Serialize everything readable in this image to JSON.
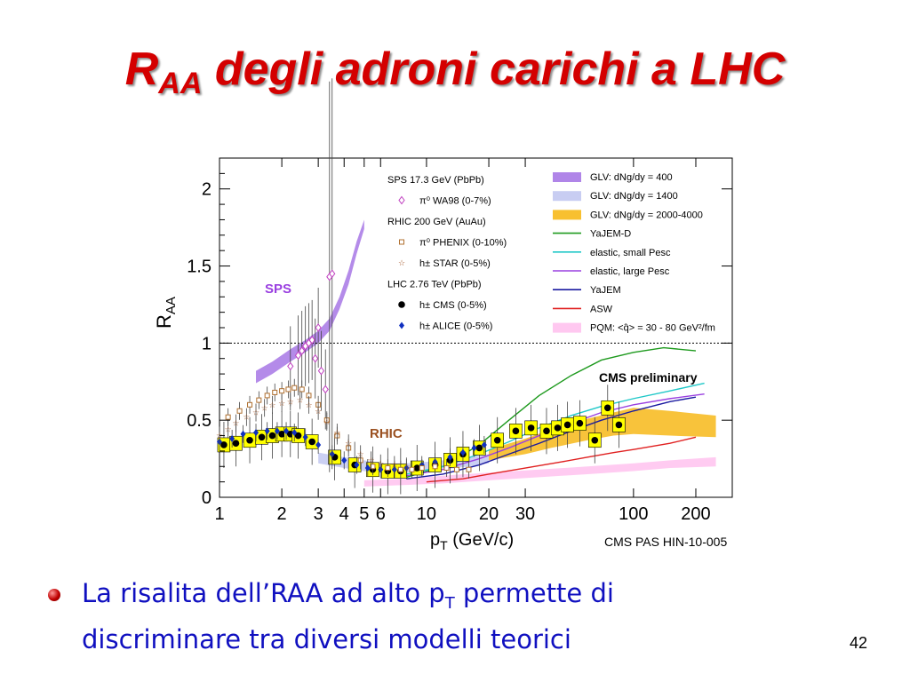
{
  "slide": {
    "title_main": "R",
    "title_sub": "AA",
    "title_rest": " degli adroni carichi a LHC",
    "bullet_part1": "La risalita dell’RAA ad alto p",
    "bullet_sub": "T",
    "bullet_part2": " permette di discriminare tra diversi modelli teorici",
    "page_number": "42"
  },
  "chart_data": {
    "type": "scatter",
    "xlabel": "p",
    "xlabel_sub": "T",
    "xlabel_unit": " (GeV/c)",
    "ylabel": "R",
    "ylabel_sub": "AA",
    "xscale": "log",
    "xlim": [
      1,
      300
    ],
    "ylim": [
      0,
      2.2
    ],
    "x_ticks": [
      1,
      2,
      3,
      4,
      5,
      6,
      10,
      20,
      30,
      100,
      200
    ],
    "x_tick_labels": [
      "1",
      "2",
      "3",
      "4",
      "5",
      "6",
      "10",
      "20",
      "30",
      "100",
      "200"
    ],
    "y_ticks": [
      0,
      0.5,
      1,
      1.5,
      2
    ],
    "y_tick_labels": [
      "0",
      "0.5",
      "1",
      "1.5",
      "2"
    ],
    "reference_line": 1,
    "annotations": {
      "sps": "SPS",
      "rhic": "RHIC",
      "cms_preliminary": "CMS preliminary",
      "source": "CMS PAS HIN-10-005"
    },
    "legend_left": [
      {
        "text": "SPS 17.3 GeV (PbPb)",
        "marker": "none"
      },
      {
        "text": "π⁰  WA98 (0-7%)",
        "marker": "open-diamond",
        "color": "#c040c0"
      },
      {
        "text": "RHIC 200 GeV (AuAu)",
        "marker": "none"
      },
      {
        "text": "π⁰  PHENIX (0-10%)",
        "marker": "open-square",
        "color": "#b07030"
      },
      {
        "text": "h±  STAR (0-5%)",
        "marker": "open-star",
        "color": "#a05020"
      },
      {
        "text": "LHC 2.76 TeV (PbPb)",
        "marker": "none"
      },
      {
        "text": "h±  CMS (0-5%)",
        "marker": "filled-circle",
        "color": "#000000"
      },
      {
        "text": "h±  ALICE (0-5%)",
        "marker": "filled-diamond",
        "color": "#1030c0"
      }
    ],
    "legend_right": [
      {
        "text": "GLV: dNg/dy = 400",
        "style": "band",
        "color": "#b085e8"
      },
      {
        "text": "GLV: dNg/dy = 1400",
        "style": "band",
        "color": "#c8cdf2"
      },
      {
        "text": "GLV: dNg/dy = 2000-4000",
        "style": "band",
        "color": "#f8c030"
      },
      {
        "text": "YaJEM-D",
        "style": "line",
        "color": "#1e9a1e"
      },
      {
        "text": "elastic, small Pesc",
        "style": "line",
        "color": "#20c8c8"
      },
      {
        "text": "elastic, large Pesc",
        "style": "line",
        "color": "#9a40e0"
      },
      {
        "text": "YaJEM",
        "style": "line",
        "color": "#1a1aa0"
      },
      {
        "text": "ASW",
        "style": "line",
        "color": "#e02020"
      },
      {
        "text": "PQM: <q̂> = 30 - 80 GeV²/fm",
        "style": "band",
        "color": "#ffc8f0"
      }
    ],
    "series": [
      {
        "name": "h±  CMS (0-5%)",
        "x": [
          1.05,
          1.2,
          1.4,
          1.6,
          1.8,
          2.0,
          2.2,
          2.4,
          2.8,
          3.6,
          4.5,
          5.5,
          6.5,
          7.5,
          9,
          11,
          13,
          15,
          18,
          22,
          27,
          32,
          38,
          43,
          48,
          55,
          65,
          75,
          85
        ],
        "y": [
          0.34,
          0.35,
          0.37,
          0.39,
          0.4,
          0.41,
          0.41,
          0.4,
          0.36,
          0.26,
          0.21,
          0.18,
          0.17,
          0.17,
          0.19,
          0.21,
          0.24,
          0.28,
          0.32,
          0.37,
          0.43,
          0.45,
          0.43,
          0.45,
          0.47,
          0.48,
          0.37,
          0.58,
          0.47
        ]
      },
      {
        "name": "h±  ALICE (0-5%)",
        "x": [
          1.0,
          1.15,
          1.3,
          1.5,
          1.7,
          1.9,
          2.1,
          2.3,
          2.6,
          3.0,
          3.5,
          4.0,
          4.6,
          5.2,
          6.0,
          7.0,
          8.0,
          9.5,
          11,
          13,
          15,
          17,
          19
        ],
        "y": [
          0.36,
          0.38,
          0.41,
          0.42,
          0.43,
          0.43,
          0.43,
          0.42,
          0.39,
          0.34,
          0.28,
          0.24,
          0.21,
          0.19,
          0.18,
          0.18,
          0.19,
          0.21,
          0.23,
          0.26,
          0.29,
          0.32,
          0.34
        ]
      },
      {
        "name": "π⁰  WA98 (0-7%)",
        "x": [
          2.2,
          2.4,
          2.5,
          2.6,
          2.7,
          2.8,
          2.9,
          3.0,
          3.1,
          3.25,
          3.4,
          3.5
        ],
        "y": [
          0.85,
          0.92,
          0.95,
          0.98,
          1.0,
          1.02,
          0.9,
          1.1,
          0.82,
          0.7,
          1.43,
          1.45
        ]
      },
      {
        "name": "π⁰  PHENIX (0-10%)",
        "x": [
          1.1,
          1.25,
          1.4,
          1.55,
          1.7,
          1.85,
          2.0,
          2.15,
          2.3,
          2.5,
          2.7,
          3.0,
          3.3,
          3.7,
          4.2,
          4.8,
          5.5,
          6.5,
          7.5,
          8.5,
          9.5,
          11,
          12.5,
          14,
          16
        ],
        "y": [
          0.52,
          0.56,
          0.6,
          0.63,
          0.66,
          0.68,
          0.69,
          0.7,
          0.71,
          0.7,
          0.66,
          0.6,
          0.5,
          0.4,
          0.32,
          0.24,
          0.2,
          0.19,
          0.18,
          0.18,
          0.19,
          0.2,
          0.19,
          0.18,
          0.18
        ]
      },
      {
        "name": "h±  STAR (0-5%)",
        "x": [
          1.0,
          1.1,
          1.2,
          1.35,
          1.5,
          1.65,
          1.8,
          2.0,
          2.2,
          2.45,
          2.7,
          3.0,
          3.3,
          3.7,
          4.2,
          4.8,
          5.4,
          6.0,
          7.0,
          8.0
        ],
        "y": [
          0.4,
          0.44,
          0.48,
          0.52,
          0.55,
          0.58,
          0.6,
          0.61,
          0.62,
          0.63,
          0.6,
          0.56,
          0.49,
          0.42,
          0.35,
          0.28,
          0.24,
          0.22,
          0.21,
          0.2
        ]
      }
    ],
    "models": [
      {
        "name": "GLV: dNg/dy = 400",
        "type": "band",
        "x": [
          1.5,
          1.8,
          2.2,
          2.6,
          3.0,
          3.4,
          3.8,
          4.2,
          4.6,
          5.0
        ],
        "y_low": [
          0.74,
          0.8,
          0.88,
          0.94,
          1.0,
          1.08,
          1.22,
          1.38,
          1.58,
          1.74
        ],
        "y_high": [
          0.82,
          0.88,
          0.96,
          1.02,
          1.08,
          1.16,
          1.3,
          1.47,
          1.66,
          1.8
        ]
      },
      {
        "name": "GLV: dNg/dy = 1400",
        "type": "band",
        "x": [
          3.0,
          4.0,
          5.0,
          6.0,
          8.0,
          10.0,
          12.0,
          14.0,
          16.0,
          20.0
        ],
        "y_low": [
          0.22,
          0.19,
          0.17,
          0.16,
          0.16,
          0.17,
          0.18,
          0.19,
          0.2,
          0.22
        ],
        "y_high": [
          0.29,
          0.26,
          0.24,
          0.22,
          0.22,
          0.23,
          0.24,
          0.25,
          0.26,
          0.28
        ]
      },
      {
        "name": "GLV: dNg/dy = 2000-4000",
        "type": "band",
        "x": [
          20,
          30,
          40,
          60,
          80,
          100,
          150,
          250
        ],
        "y_low": [
          0.24,
          0.28,
          0.32,
          0.37,
          0.4,
          0.41,
          0.4,
          0.39
        ],
        "y_high": [
          0.31,
          0.38,
          0.44,
          0.51,
          0.55,
          0.58,
          0.56,
          0.53
        ]
      },
      {
        "name": "YaJEM-D",
        "type": "line",
        "x": [
          8,
          12,
          18,
          25,
          35,
          50,
          70,
          100,
          140,
          200
        ],
        "y": [
          0.13,
          0.2,
          0.34,
          0.5,
          0.66,
          0.79,
          0.89,
          0.94,
          0.97,
          0.95
        ]
      },
      {
        "name": "elastic, small Pesc",
        "type": "line",
        "x": [
          8,
          12,
          18,
          25,
          35,
          50,
          70,
          100,
          150,
          220
        ],
        "y": [
          0.15,
          0.2,
          0.28,
          0.36,
          0.45,
          0.53,
          0.59,
          0.64,
          0.69,
          0.74
        ]
      },
      {
        "name": "elastic, large Pesc",
        "type": "line",
        "x": [
          8,
          12,
          18,
          25,
          35,
          50,
          70,
          100,
          150,
          220
        ],
        "y": [
          0.14,
          0.18,
          0.25,
          0.32,
          0.4,
          0.48,
          0.55,
          0.6,
          0.64,
          0.67
        ]
      },
      {
        "name": "YaJEM",
        "type": "line",
        "x": [
          8,
          12,
          18,
          25,
          35,
          50,
          70,
          100,
          150,
          200
        ],
        "y": [
          0.12,
          0.15,
          0.21,
          0.28,
          0.35,
          0.43,
          0.5,
          0.56,
          0.62,
          0.65
        ]
      },
      {
        "name": "ASW",
        "type": "line",
        "x": [
          10,
          15,
          20,
          30,
          45,
          60,
          80,
          100,
          150,
          200
        ],
        "y": [
          0.1,
          0.12,
          0.15,
          0.19,
          0.23,
          0.26,
          0.29,
          0.31,
          0.35,
          0.39
        ]
      },
      {
        "name": "PQM: <q̂> = 30 - 80 GeV²/fm",
        "type": "band",
        "x": [
          5,
          8,
          12,
          20,
          35,
          60,
          100,
          150,
          250
        ],
        "y_low": [
          0.07,
          0.08,
          0.09,
          0.11,
          0.13,
          0.15,
          0.17,
          0.19,
          0.2
        ],
        "y_high": [
          0.11,
          0.12,
          0.14,
          0.16,
          0.18,
          0.2,
          0.22,
          0.24,
          0.26
        ]
      }
    ]
  }
}
